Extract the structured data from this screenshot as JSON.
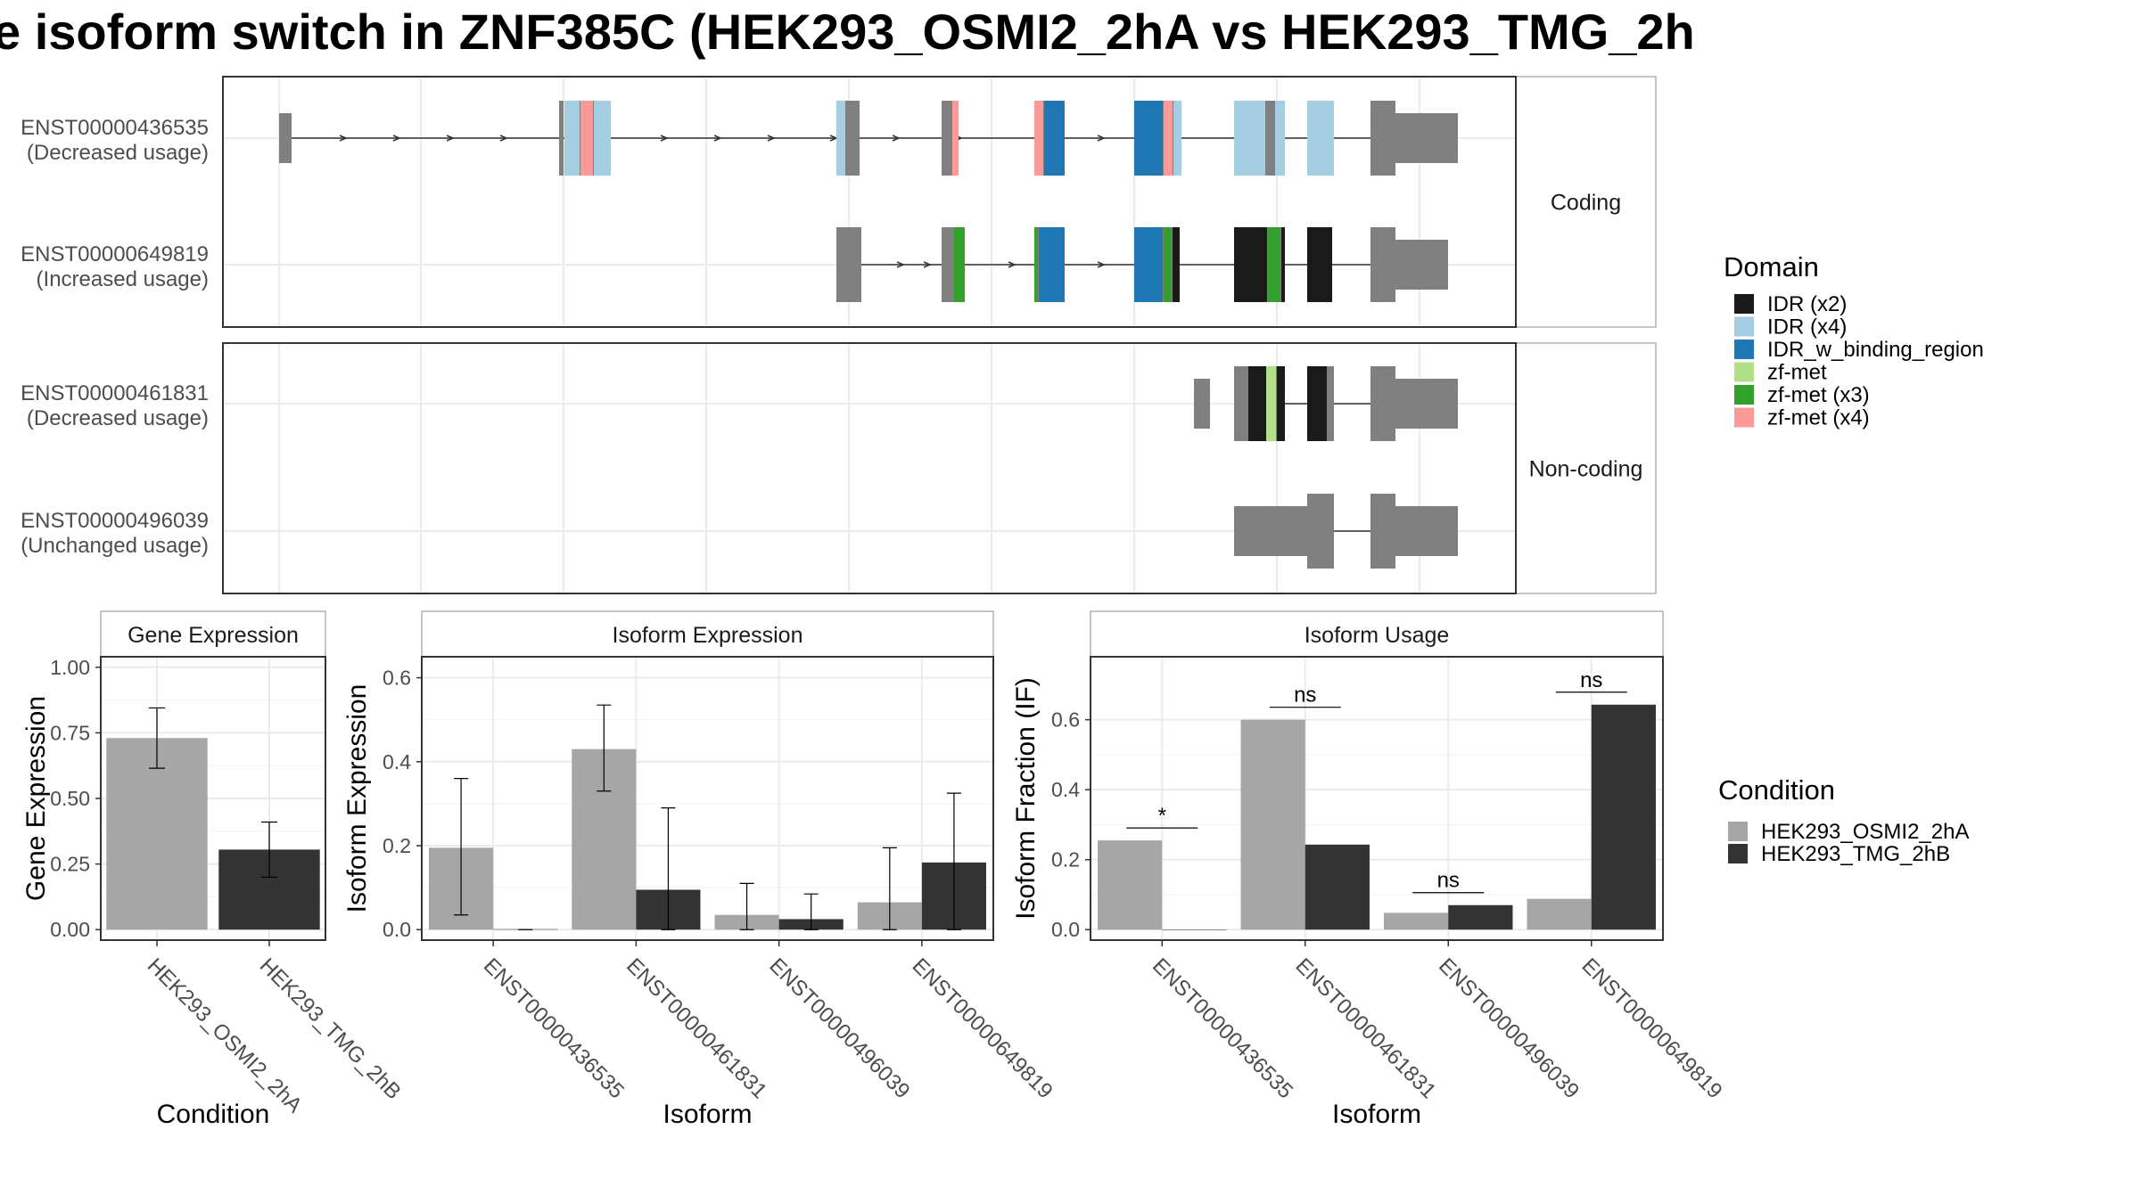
{
  "title": "e isoform switch in ZNF385C (HEK293_OSMI2_2hA vs HEK293_TMG_2h",
  "colors": {
    "IDR (x2)": "#1a1a1a",
    "IDR (x4)": "#a6cee3",
    "IDR_w_binding_region": "#1f78b4",
    "zf-met": "#b2df8a",
    "zf-met (x3)": "#33a02c",
    "zf-met (x4)": "#fb9a99",
    "exon": "#808080",
    "cond_a": "#a6a6a6",
    "cond_b": "#333333"
  },
  "structure": {
    "groups": [
      {
        "label": "Coding",
        "rows": [
          {
            "id": "ENST00000436535",
            "usage": "(Decreased usage)"
          },
          {
            "id": "ENST00000649819",
            "usage": "(Increased usage)"
          }
        ]
      },
      {
        "label": "Non-coding",
        "rows": [
          {
            "id": "ENST00000461831",
            "usage": "(Decreased usage)"
          },
          {
            "id": "ENST00000496039",
            "usage": "(Unchanged usage)"
          }
        ]
      }
    ]
  },
  "legends": {
    "domain": {
      "title": "Domain",
      "items": [
        "IDR (x2)",
        "IDR (x4)",
        "IDR_w_binding_region",
        "zf-met",
        "zf-met (x3)",
        "zf-met (x4)"
      ]
    },
    "condition": {
      "title": "Condition",
      "items": [
        "HEK293_OSMI2_2hA",
        "HEK293_TMG_2hB"
      ]
    }
  },
  "chart_data": [
    {
      "type": "bar",
      "title": "Gene Expression",
      "xlabel": "Condition",
      "ylabel": "Gene Expression",
      "categories": [
        "HEK293_OSMI2_2hA",
        "HEK293_TMG_2hB"
      ],
      "values": [
        0.73,
        0.305
      ],
      "errors": [
        [
          0.615,
          0.845
        ],
        [
          0.2,
          0.41
        ]
      ],
      "ylim": [
        -0.04,
        1.04
      ],
      "yticks": [
        0.0,
        0.25,
        0.5,
        0.75,
        1.0
      ],
      "ytick_labels": [
        "0.00",
        "0.25",
        "0.50",
        "0.75",
        "1.00"
      ]
    },
    {
      "type": "bar",
      "title": "Isoform Expression",
      "xlabel": "Isoform",
      "ylabel": "Isoform Expression",
      "categories": [
        "ENST00000436535",
        "ENST00000461831",
        "ENST00000496039",
        "ENST00000649819"
      ],
      "series": [
        {
          "name": "HEK293_OSMI2_2hA",
          "values": [
            0.195,
            0.43,
            0.035,
            0.065
          ],
          "errors": [
            [
              0.035,
              0.36
            ],
            [
              0.33,
              0.535
            ],
            [
              0.0,
              0.11
            ],
            [
              0.0,
              0.195
            ]
          ]
        },
        {
          "name": "HEK293_TMG_2hB",
          "values": [
            0.001,
            0.095,
            0.025,
            0.16
          ],
          "errors": [
            [
              0.0,
              0.001
            ],
            [
              0.0,
              0.29
            ],
            [
              0.0,
              0.085
            ],
            [
              0.0,
              0.325
            ]
          ]
        }
      ],
      "ylim": [
        -0.025,
        0.65
      ],
      "yticks": [
        0.0,
        0.2,
        0.4,
        0.6
      ],
      "ytick_labels": [
        "0.0",
        "0.2",
        "0.4",
        "0.6"
      ]
    },
    {
      "type": "bar",
      "title": "Isoform Usage",
      "xlabel": "Isoform",
      "ylabel": "Isoform Fraction (IF)",
      "categories": [
        "ENST00000436535",
        "ENST00000461831",
        "ENST00000496039",
        "ENST00000649819"
      ],
      "series": [
        {
          "name": "HEK293_OSMI2_2hA",
          "values": [
            0.255,
            0.6,
            0.048,
            0.088
          ]
        },
        {
          "name": "HEK293_TMG_2hB",
          "values": [
            0.0,
            0.243,
            0.07,
            0.643
          ]
        }
      ],
      "significance": [
        "*",
        "ns",
        "ns",
        "ns"
      ],
      "ylim": [
        -0.03,
        0.78
      ],
      "yticks": [
        0.0,
        0.2,
        0.4,
        0.6
      ],
      "ytick_labels": [
        "0.0",
        "0.2",
        "0.4",
        "0.6"
      ]
    }
  ]
}
